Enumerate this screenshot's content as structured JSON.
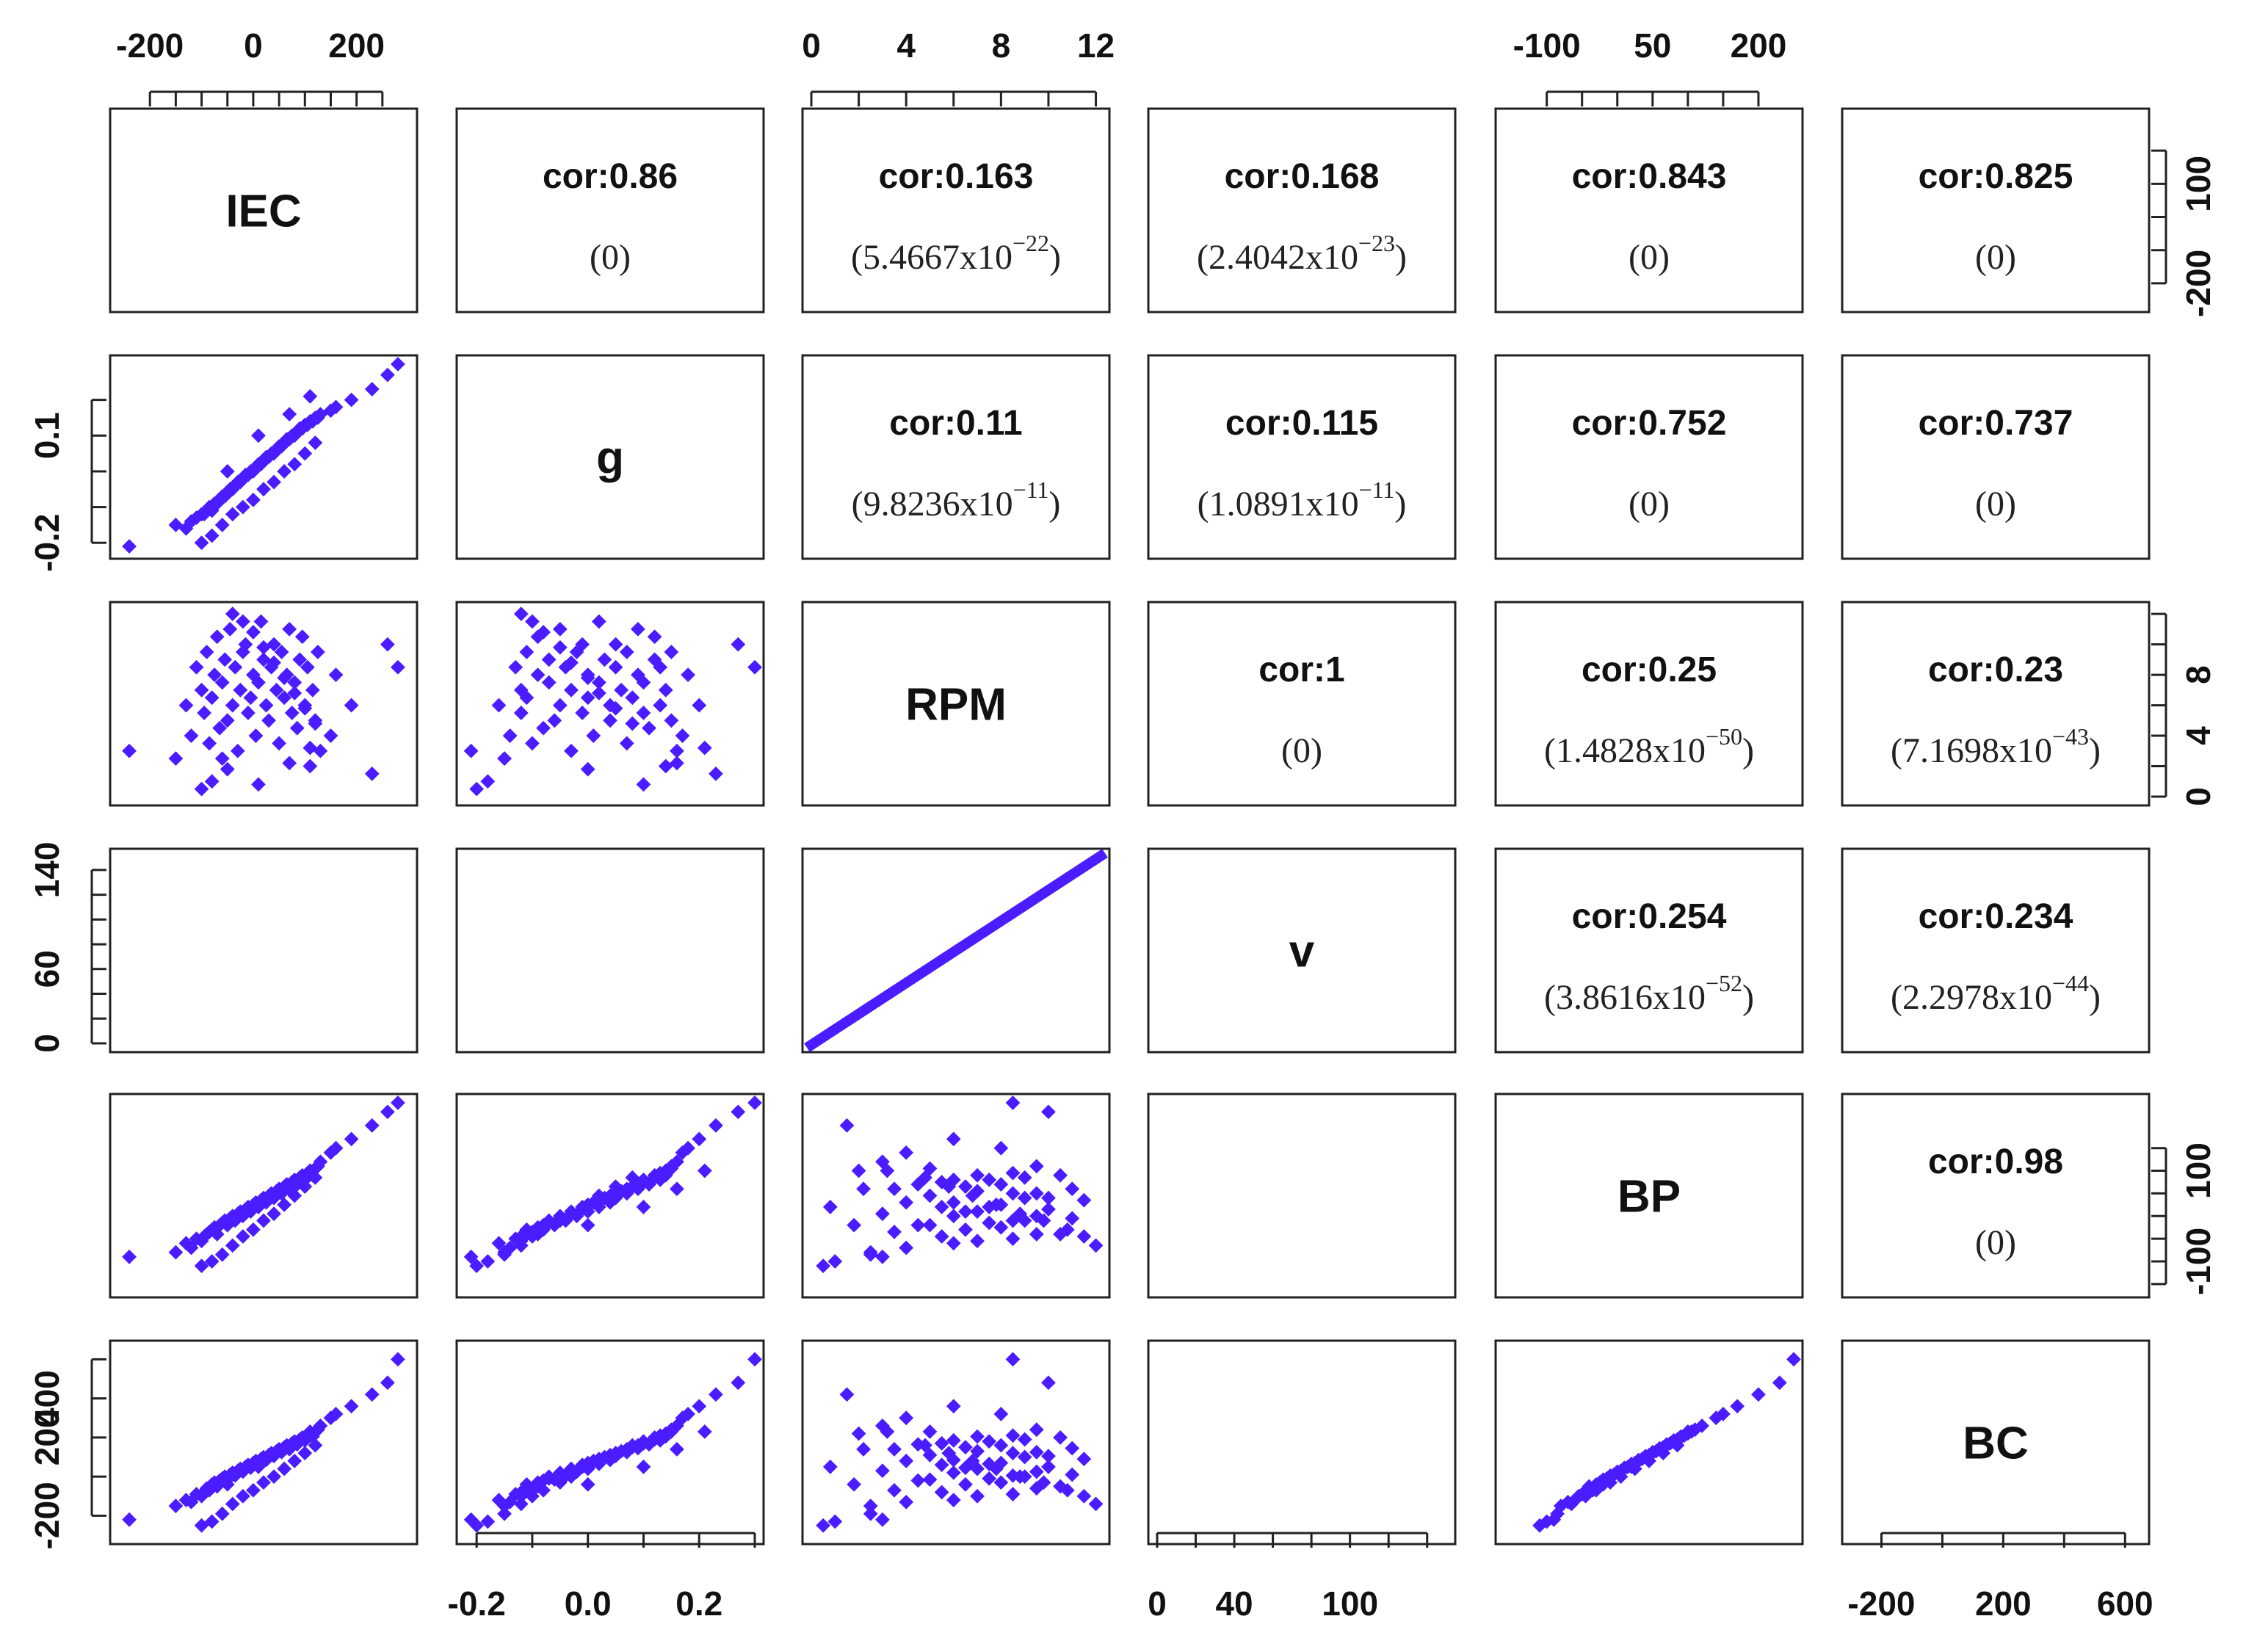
{
  "figure": {
    "point_color": "#4a1cff",
    "text_color": "#111111"
  },
  "chart_data": {
    "type": "scatter-matrix",
    "title": "",
    "variables": [
      "IEC",
      "g",
      "RPM",
      "v",
      "BP",
      "BC"
    ],
    "ranges": {
      "IEC": [
        -260,
        300
      ],
      "g": [
        -0.22,
        0.3
      ],
      "RPM": [
        0,
        12.2
      ],
      "v": [
        0,
        150
      ],
      "BP": [
        -160,
        250
      ],
      "BC": [
        -300,
        650
      ]
    },
    "axis_ticks": {
      "top": [
        {
          "variable": "IEC",
          "ticks": [
            -200,
            -150,
            -100,
            -50,
            0,
            50,
            100,
            150,
            200,
            250
          ],
          "labels": [
            {
              "value": -200,
              "text": "-200"
            },
            {
              "value": 0,
              "text": "0"
            },
            {
              "value": 200,
              "text": "200"
            }
          ]
        },
        {
          "variable": "RPM",
          "ticks": [
            0,
            2,
            4,
            6,
            8,
            10,
            12
          ],
          "labels": [
            {
              "value": 0,
              "text": "0"
            },
            {
              "value": 4,
              "text": "4"
            },
            {
              "value": 8,
              "text": "8"
            },
            {
              "value": 12,
              "text": "12"
            }
          ]
        },
        {
          "variable": "BP",
          "ticks": [
            -100,
            -50,
            0,
            50,
            100,
            150,
            200
          ],
          "labels": [
            {
              "value": -100,
              "text": "-100"
            },
            {
              "value": 50,
              "text": "50"
            },
            {
              "value": 200,
              "text": "200"
            }
          ]
        }
      ],
      "bottom": [
        {
          "variable": "g",
          "ticks": [
            -0.2,
            -0.1,
            0.0,
            0.1,
            0.2,
            0.3
          ],
          "labels": [
            {
              "value": -0.2,
              "text": "-0.2"
            },
            {
              "value": 0.0,
              "text": "0.0"
            },
            {
              "value": 0.2,
              "text": "0.2"
            }
          ]
        },
        {
          "variable": "v",
          "ticks": [
            0,
            20,
            40,
            60,
            80,
            100,
            120,
            140
          ],
          "labels": [
            {
              "value": 0,
              "text": "0"
            },
            {
              "value": 40,
              "text": "40"
            },
            {
              "value": 100,
              "text": "100"
            }
          ]
        },
        {
          "variable": "BC",
          "ticks": [
            -200,
            0,
            200,
            400,
            600
          ],
          "labels": [
            {
              "value": -200,
              "text": "-200"
            },
            {
              "value": 200,
              "text": "200"
            },
            {
              "value": 600,
              "text": "600"
            }
          ]
        }
      ],
      "left": [
        {
          "variable": "g",
          "ticks": [
            -0.2,
            -0.1,
            0.0,
            0.1,
            0.2
          ],
          "labels": [
            {
              "value": 0.1,
              "text": "0.1"
            },
            {
              "value": -0.2,
              "text": "-0.2"
            }
          ]
        },
        {
          "variable": "v",
          "ticks": [
            0,
            20,
            40,
            60,
            80,
            100,
            120,
            140
          ],
          "labels": [
            {
              "value": 140,
              "text": "140"
            },
            {
              "value": 60,
              "text": "60"
            },
            {
              "value": 0,
              "text": "0"
            }
          ]
        },
        {
          "variable": "BC",
          "ticks": [
            -200,
            0,
            200,
            400,
            600
          ],
          "labels": [
            {
              "value": 400,
              "text": "400"
            },
            {
              "value": 200,
              "text": "200"
            },
            {
              "value": -200,
              "text": "-200"
            }
          ]
        }
      ],
      "right": [
        {
          "variable": "IEC",
          "ticks": [
            -200,
            -100,
            0,
            100,
            200
          ],
          "labels": [
            {
              "value": 100,
              "text": "100"
            },
            {
              "value": -200,
              "text": "-200"
            }
          ]
        },
        {
          "variable": "RPM",
          "ticks": [
            0,
            2,
            4,
            6,
            8,
            10,
            12
          ],
          "labels": [
            {
              "value": 8,
              "text": "8"
            },
            {
              "value": 4,
              "text": "4"
            },
            {
              "value": 0,
              "text": "0"
            }
          ]
        },
        {
          "variable": "BP",
          "ticks": [
            -150,
            -100,
            -50,
            0,
            50,
            100,
            150
          ],
          "labels": [
            {
              "value": 100,
              "text": "100"
            },
            {
              "value": -100,
              "text": "-100"
            }
          ]
        }
      ]
    },
    "correlations": [
      {
        "row": 0,
        "col": 1,
        "cor": "cor:0.86",
        "p_base": "(0)",
        "p_exp": ""
      },
      {
        "row": 0,
        "col": 2,
        "cor": "cor:0.163",
        "p_base": "(5.4667x10",
        "p_exp": "−22"
      },
      {
        "row": 0,
        "col": 3,
        "cor": "cor:0.168",
        "p_base": "(2.4042x10",
        "p_exp": "−23"
      },
      {
        "row": 0,
        "col": 4,
        "cor": "cor:0.843",
        "p_base": "(0)",
        "p_exp": ""
      },
      {
        "row": 0,
        "col": 5,
        "cor": "cor:0.825",
        "p_base": "(0)",
        "p_exp": ""
      },
      {
        "row": 1,
        "col": 2,
        "cor": "cor:0.11",
        "p_base": "(9.8236x10",
        "p_exp": "−11"
      },
      {
        "row": 1,
        "col": 3,
        "cor": "cor:0.115",
        "p_base": "(1.0891x10",
        "p_exp": "−11"
      },
      {
        "row": 1,
        "col": 4,
        "cor": "cor:0.752",
        "p_base": "(0)",
        "p_exp": ""
      },
      {
        "row": 1,
        "col": 5,
        "cor": "cor:0.737",
        "p_base": "(0)",
        "p_exp": ""
      },
      {
        "row": 2,
        "col": 3,
        "cor": "cor:1",
        "p_base": "(0)",
        "p_exp": ""
      },
      {
        "row": 2,
        "col": 4,
        "cor": "cor:0.25",
        "p_base": "(1.4828x10",
        "p_exp": "−50"
      },
      {
        "row": 2,
        "col": 5,
        "cor": "cor:0.23",
        "p_base": "(7.1698x10",
        "p_exp": "−43"
      },
      {
        "row": 3,
        "col": 4,
        "cor": "cor:0.254",
        "p_base": "(3.8616x10",
        "p_exp": "−52"
      },
      {
        "row": 3,
        "col": 5,
        "cor": "cor:0.234",
        "p_base": "(2.2978x10",
        "p_exp": "−44"
      },
      {
        "row": 4,
        "col": 5,
        "cor": "cor:0.98",
        "p_base": "(0)",
        "p_exp": ""
      }
    ],
    "scatter_points": {
      "IEC": [
        -240,
        -150,
        -130,
        -120,
        -110,
        -100,
        -95,
        -90,
        -85,
        -80,
        -75,
        -70,
        -65,
        -60,
        -55,
        -50,
        -45,
        -40,
        -35,
        -30,
        -25,
        -20,
        -15,
        -10,
        -5,
        0,
        5,
        10,
        15,
        20,
        25,
        30,
        35,
        40,
        45,
        50,
        55,
        60,
        65,
        70,
        75,
        80,
        85,
        90,
        95,
        100,
        105,
        110,
        115,
        120,
        125,
        130,
        150,
        160,
        190,
        230,
        260,
        280,
        -100,
        -80,
        -60,
        -40,
        -20,
        0,
        20,
        40,
        60,
        80,
        100,
        120,
        -50,
        10,
        70,
        110
      ],
      "g": [
        -0.21,
        -0.15,
        -0.16,
        -0.14,
        -0.13,
        -0.12,
        -0.12,
        -0.11,
        -0.1,
        -0.11,
        -0.09,
        -0.09,
        -0.08,
        -0.07,
        -0.07,
        -0.06,
        -0.05,
        -0.05,
        -0.04,
        -0.03,
        -0.03,
        -0.02,
        -0.01,
        -0.01,
        0.0,
        0.0,
        0.01,
        0.02,
        0.02,
        0.03,
        0.04,
        0.04,
        0.05,
        0.05,
        0.06,
        0.07,
        0.07,
        0.08,
        0.09,
        0.09,
        0.1,
        0.1,
        0.11,
        0.12,
        0.12,
        0.13,
        0.13,
        0.14,
        0.14,
        0.15,
        0.15,
        0.16,
        0.17,
        0.18,
        0.2,
        0.23,
        0.27,
        0.3,
        -0.2,
        -0.18,
        -0.15,
        -0.12,
        -0.1,
        -0.08,
        -0.05,
        -0.03,
        0.0,
        0.02,
        0.05,
        0.08,
        0.0,
        0.1,
        0.16,
        0.21
      ],
      "RPM": [
        3.0,
        2.5,
        6.0,
        4.0,
        8.5,
        7.0,
        5.5,
        9.5,
        3.5,
        6.5,
        8.0,
        10.5,
        4.5,
        7.5,
        9.0,
        5.0,
        11.0,
        6.0,
        8.5,
        3.0,
        7.0,
        9.5,
        10.0,
        5.5,
        6.5,
        8.0,
        4.0,
        7.5,
        11.5,
        9.0,
        6.0,
        5.0,
        8.5,
        10.0,
        7.0,
        3.5,
        9.5,
        6.5,
        8.0,
        11.0,
        5.5,
        7.5,
        4.5,
        9.0,
        10.5,
        6.0,
        8.5,
        2.0,
        7.0,
        5.0,
        9.5,
        3.0,
        4.0,
        8.0,
        6.0,
        1.5,
        10.0,
        8.5,
        0.5,
        1.0,
        2.5,
        12.0,
        11.5,
        10.8,
        9.8,
        8.8,
        7.8,
        6.8,
        5.8,
        4.8,
        1.8,
        0.8,
        2.2,
        3.2
      ],
      "BP": [
        -90,
        -80,
        -60,
        -70,
        -50,
        -55,
        -45,
        -40,
        -35,
        -30,
        -25,
        -40,
        -20,
        -15,
        -10,
        -20,
        -5,
        0,
        -10,
        5,
        10,
        0,
        15,
        20,
        10,
        25,
        30,
        20,
        35,
        40,
        30,
        45,
        50,
        40,
        55,
        60,
        50,
        65,
        70,
        60,
        75,
        80,
        70,
        85,
        90,
        80,
        95,
        100,
        90,
        105,
        110,
        120,
        140,
        150,
        170,
        200,
        230,
        250,
        -110,
        -100,
        -85,
        -65,
        -45,
        -30,
        -10,
        5,
        25,
        45,
        65,
        85,
        -20,
        20,
        60,
        100
      ],
      "BC": [
        -220,
        -150,
        -120,
        -130,
        -90,
        -100,
        -80,
        -60,
        -70,
        -40,
        -30,
        -50,
        -20,
        -10,
        0,
        -15,
        10,
        20,
        5,
        30,
        40,
        25,
        50,
        60,
        45,
        70,
        80,
        65,
        90,
        100,
        85,
        110,
        120,
        105,
        130,
        140,
        125,
        150,
        160,
        145,
        170,
        180,
        165,
        190,
        200,
        185,
        210,
        220,
        205,
        230,
        240,
        260,
        300,
        320,
        360,
        420,
        480,
        600,
        -250,
        -230,
        -190,
        -140,
        -100,
        -70,
        -30,
        0,
        40,
        80,
        120,
        160,
        -40,
        50,
        140,
        230
      ]
    }
  }
}
